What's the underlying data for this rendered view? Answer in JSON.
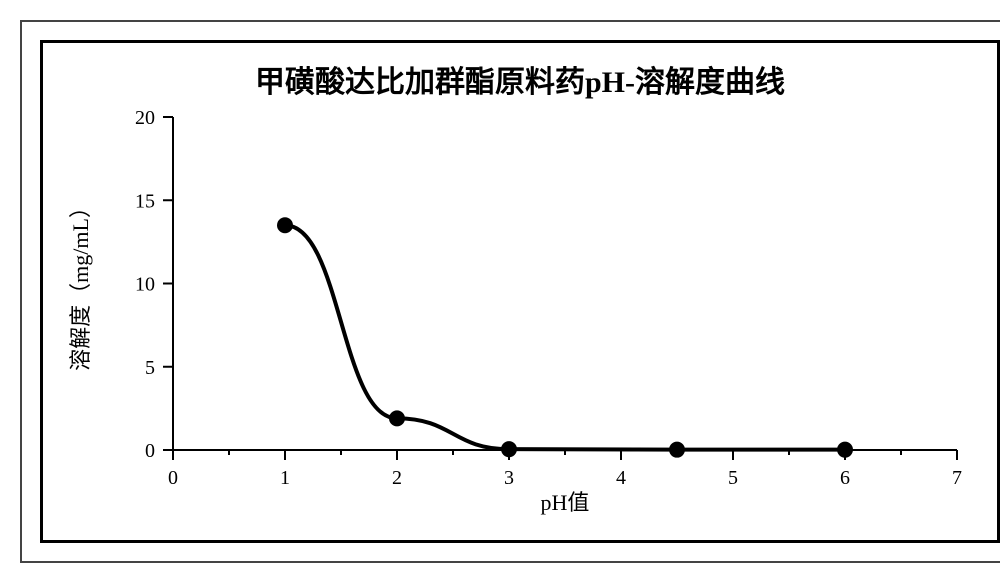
{
  "chart": {
    "type": "line",
    "title": "甲磺酸达比加群酯原料药pH-溶解度曲线",
    "title_fontsize": 30,
    "xlabel": "pH值",
    "ylabel": "溶解度（mg/mL）",
    "label_fontsize": 22,
    "tick_fontsize": 20,
    "x_ticks": [
      0,
      1,
      2,
      3,
      4,
      5,
      6,
      7
    ],
    "y_ticks": [
      0,
      5,
      10,
      15,
      20
    ],
    "xlim": [
      0,
      7
    ],
    "ylim": [
      0,
      20
    ],
    "points": [
      {
        "x": 1.0,
        "y": 13.5
      },
      {
        "x": 2.0,
        "y": 1.9
      },
      {
        "x": 3.0,
        "y": 0.05
      },
      {
        "x": 4.5,
        "y": 0.02
      },
      {
        "x": 6.0,
        "y": 0.02
      }
    ],
    "line_color": "#000000",
    "line_width": 4,
    "marker_color": "#000000",
    "marker_radius": 8,
    "axis_color": "#000000",
    "axis_width": 2,
    "tick_length_major": 10,
    "tick_length_minor": 5,
    "background_color": "#ffffff",
    "text_color": "#000000"
  }
}
